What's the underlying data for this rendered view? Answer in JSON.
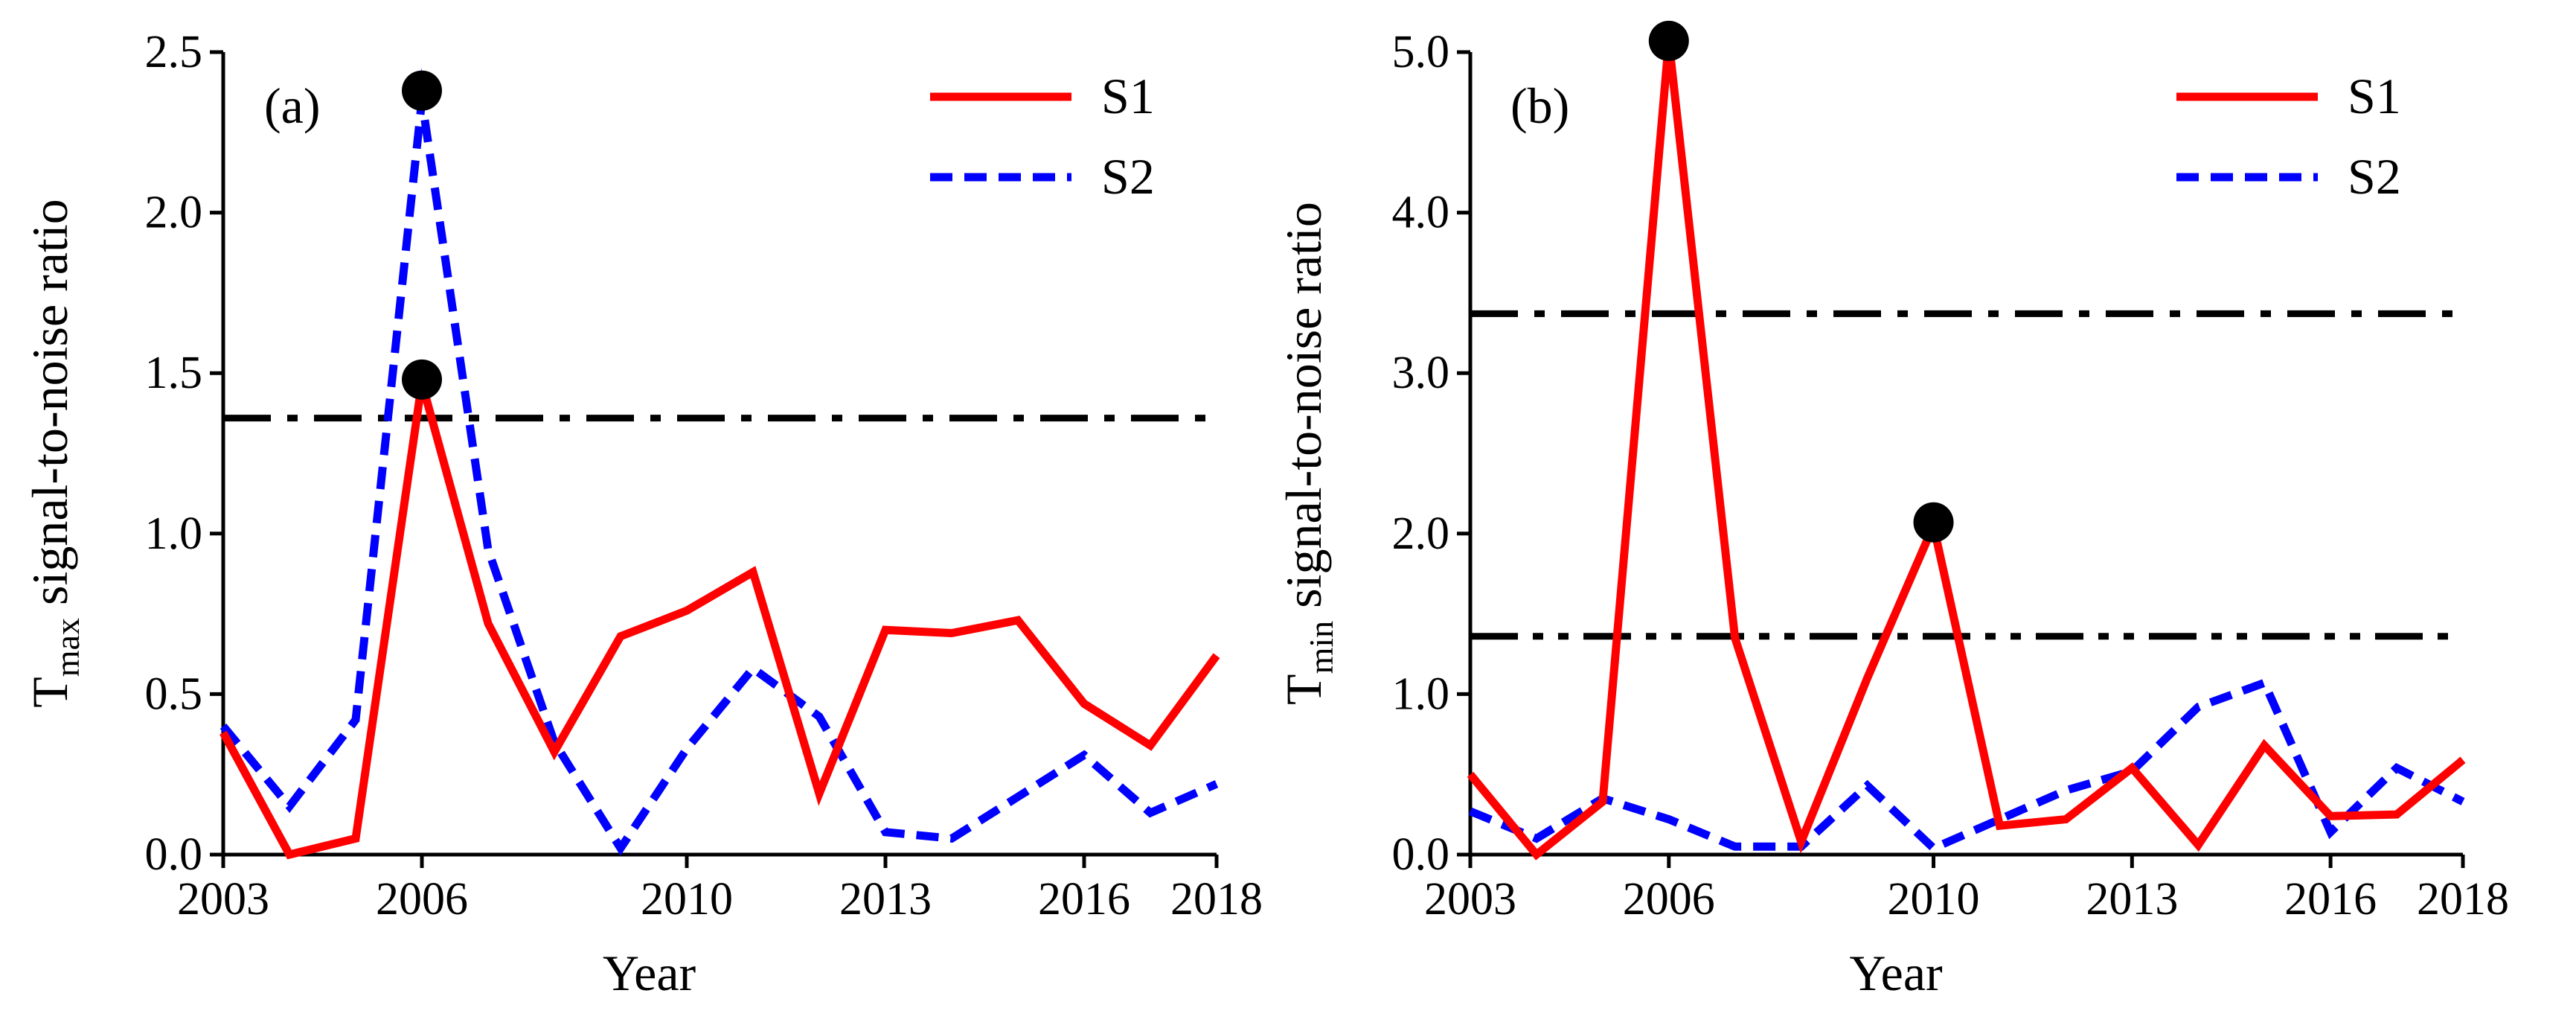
{
  "chart_data": [
    {
      "type": "line",
      "panel_label": "(a)",
      "ylabel": {
        "prefix": "T",
        "sub": "max",
        "suffix": " signal-to-noise ratio"
      },
      "xlabel": "Year",
      "xlim": [
        2003,
        2018
      ],
      "ylim": [
        0,
        2.5
      ],
      "xticks": [
        2003,
        2006,
        2010,
        2013,
        2016,
        2018
      ],
      "yticks": [
        0.0,
        0.5,
        1.0,
        1.5,
        2.0,
        2.5
      ],
      "ytick_labels": [
        "0.0",
        "0.5",
        "1.0",
        "1.5",
        "2.0",
        "2.5"
      ],
      "legend_position": "top-right",
      "series": [
        {
          "name": "S1",
          "color": "#ff0000",
          "style": "solid",
          "x": [
            2003,
            2004,
            2005,
            2006,
            2007,
            2008,
            2009,
            2010,
            2011,
            2012,
            2013,
            2014,
            2015,
            2016,
            2017,
            2018
          ],
          "values": [
            0.38,
            0.0,
            0.05,
            1.47,
            0.72,
            0.32,
            0.68,
            0.76,
            0.88,
            0.19,
            0.7,
            0.69,
            0.73,
            0.47,
            0.34,
            0.62
          ]
        },
        {
          "name": "S2",
          "color": "#0000ff",
          "style": "dashed",
          "x": [
            2003,
            2004,
            2005,
            2006,
            2007,
            2008,
            2009,
            2010,
            2011,
            2012,
            2013,
            2014,
            2015,
            2016,
            2017,
            2018
          ],
          "values": [
            0.4,
            0.15,
            0.42,
            2.35,
            0.95,
            0.35,
            0.02,
            0.33,
            0.58,
            0.43,
            0.07,
            0.05,
            0.18,
            0.31,
            0.13,
            0.22
          ]
        }
      ],
      "hlines": [
        {
          "y": 1.36,
          "color": "#000000",
          "style": "dashdot"
        }
      ],
      "markers": [
        {
          "x": 2006,
          "y": 2.38,
          "color": "#000000"
        },
        {
          "x": 2006,
          "y": 1.48,
          "color": "#000000"
        }
      ]
    },
    {
      "type": "line",
      "panel_label": "(b)",
      "ylabel": {
        "prefix": "T",
        "sub": "min",
        "suffix": " signal-to-noise ratio"
      },
      "xlabel": "Year",
      "xlim": [
        2003,
        2018
      ],
      "ylim": [
        0,
        5
      ],
      "xticks": [
        2003,
        2006,
        2010,
        2013,
        2016,
        2018
      ],
      "yticks": [
        0,
        1,
        2,
        3,
        4,
        5
      ],
      "ytick_labels": [
        "0.0",
        "1.0",
        "2.0",
        "3.0",
        "4.0",
        "5.0"
      ],
      "legend_position": "top-right",
      "series": [
        {
          "name": "S1",
          "color": "#ff0000",
          "style": "solid",
          "x": [
            2003,
            2004,
            2005,
            2006,
            2007,
            2008,
            2009,
            2010,
            2011,
            2012,
            2013,
            2014,
            2015,
            2016,
            2017,
            2018
          ],
          "values": [
            0.5,
            0.0,
            0.33,
            5.07,
            1.35,
            0.08,
            1.1,
            2.05,
            0.18,
            0.22,
            0.54,
            0.06,
            0.68,
            0.24,
            0.25,
            0.59
          ]
        },
        {
          "name": "S2",
          "color": "#0000ff",
          "style": "dashed",
          "x": [
            2003,
            2004,
            2005,
            2006,
            2007,
            2008,
            2009,
            2010,
            2011,
            2012,
            2013,
            2014,
            2015,
            2016,
            2017,
            2018
          ],
          "values": [
            0.27,
            0.1,
            0.35,
            0.22,
            0.05,
            0.05,
            0.43,
            0.04,
            0.22,
            0.4,
            0.52,
            0.92,
            1.07,
            0.14,
            0.54,
            0.33
          ]
        }
      ],
      "hlines": [
        {
          "y": 3.37,
          "color": "#000000",
          "style": "dashdot"
        },
        {
          "y": 1.36,
          "color": "#000000",
          "style": "dashdotdot"
        }
      ],
      "markers": [
        {
          "x": 2006,
          "y": 5.07,
          "color": "#000000"
        },
        {
          "x": 2010,
          "y": 2.07,
          "color": "#000000"
        }
      ]
    }
  ]
}
